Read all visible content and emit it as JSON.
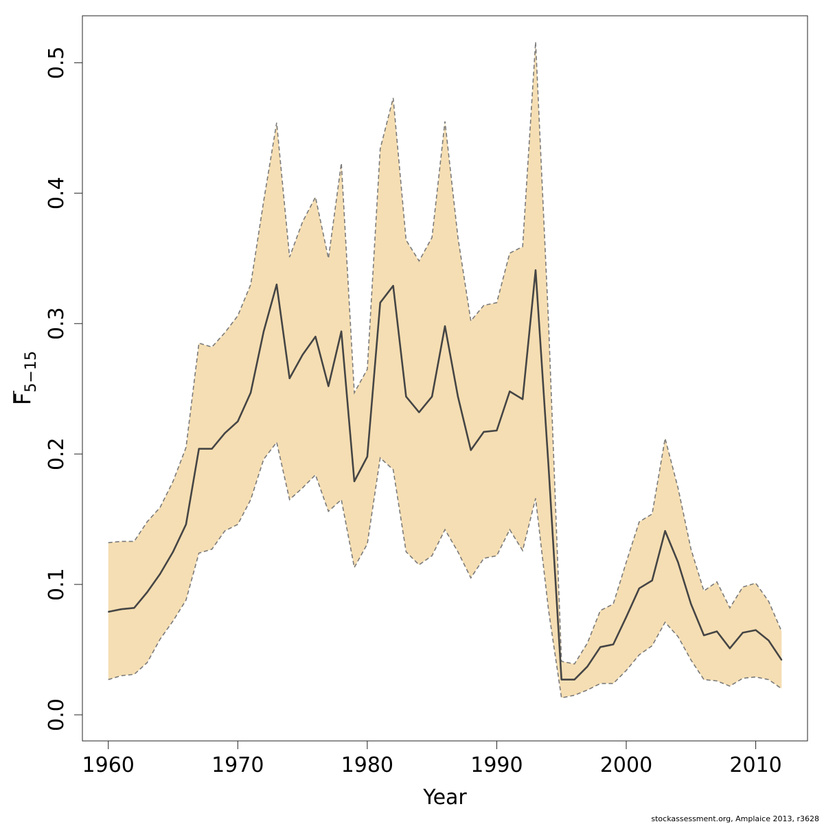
{
  "chart_data": {
    "type": "line",
    "title": "",
    "xlabel": "Year",
    "ylabel_main": "F",
    "ylabel_sub": "5−15",
    "caption": "stockassessment.org, Amplaice  2013, r3628",
    "xlim": [
      1958,
      2014
    ],
    "ylim": [
      -0.02,
      0.536
    ],
    "x_ticks": [
      1960,
      1970,
      1980,
      1990,
      2000,
      2010
    ],
    "y_ticks": [
      0.0,
      0.1,
      0.2,
      0.3,
      0.4,
      0.5
    ],
    "y_tick_labels": [
      "0.0",
      "0.1",
      "0.2",
      "0.3",
      "0.4",
      "0.5"
    ],
    "grid": false,
    "colors": {
      "band_fill": "#f5deb3",
      "band_edge": "#7a7a7a",
      "line": "#454545"
    },
    "x": [
      1960,
      1961,
      1962,
      1963,
      1964,
      1965,
      1966,
      1967,
      1968,
      1969,
      1970,
      1971,
      1972,
      1973,
      1974,
      1975,
      1976,
      1977,
      1978,
      1979,
      1980,
      1981,
      1982,
      1983,
      1984,
      1985,
      1986,
      1987,
      1988,
      1989,
      1990,
      1991,
      1992,
      1993,
      1994,
      1995,
      1996,
      1997,
      1998,
      1999,
      2000,
      2001,
      2002,
      2003,
      2004,
      2005,
      2006,
      2007,
      2008,
      2009,
      2010,
      2011,
      2012
    ],
    "series": [
      {
        "role": "estimate",
        "values": [
          0.079,
          0.081,
          0.082,
          0.094,
          0.108,
          0.125,
          0.146,
          0.204,
          0.204,
          0.216,
          0.225,
          0.247,
          0.294,
          0.33,
          0.258,
          0.276,
          0.29,
          0.252,
          0.294,
          0.179,
          0.198,
          0.316,
          0.329,
          0.244,
          0.232,
          0.244,
          0.298,
          0.244,
          0.203,
          0.217,
          0.218,
          0.248,
          0.242,
          0.341,
          0.19,
          0.027,
          0.027,
          0.037,
          0.052,
          0.054,
          0.075,
          0.097,
          0.103,
          0.141,
          0.117,
          0.085,
          0.061,
          0.064,
          0.051,
          0.063,
          0.065,
          0.057,
          0.042
        ]
      },
      {
        "role": "upper",
        "values": [
          0.132,
          0.133,
          0.133,
          0.148,
          0.159,
          0.179,
          0.205,
          0.285,
          0.282,
          0.293,
          0.306,
          0.33,
          0.394,
          0.454,
          0.351,
          0.378,
          0.397,
          0.35,
          0.423,
          0.247,
          0.265,
          0.434,
          0.473,
          0.364,
          0.348,
          0.366,
          0.455,
          0.366,
          0.302,
          0.314,
          0.316,
          0.354,
          0.359,
          0.516,
          0.3,
          0.041,
          0.039,
          0.055,
          0.08,
          0.085,
          0.117,
          0.148,
          0.154,
          0.212,
          0.174,
          0.127,
          0.095,
          0.102,
          0.082,
          0.098,
          0.101,
          0.087,
          0.064
        ]
      },
      {
        "role": "lower",
        "values": [
          0.027,
          0.03,
          0.031,
          0.04,
          0.058,
          0.072,
          0.088,
          0.124,
          0.127,
          0.141,
          0.146,
          0.165,
          0.196,
          0.209,
          0.165,
          0.174,
          0.184,
          0.156,
          0.165,
          0.113,
          0.131,
          0.197,
          0.188,
          0.125,
          0.115,
          0.122,
          0.142,
          0.125,
          0.105,
          0.12,
          0.122,
          0.142,
          0.126,
          0.166,
          0.08,
          0.013,
          0.015,
          0.019,
          0.024,
          0.024,
          0.034,
          0.046,
          0.053,
          0.071,
          0.06,
          0.042,
          0.027,
          0.026,
          0.022,
          0.028,
          0.029,
          0.027,
          0.02
        ]
      }
    ]
  }
}
